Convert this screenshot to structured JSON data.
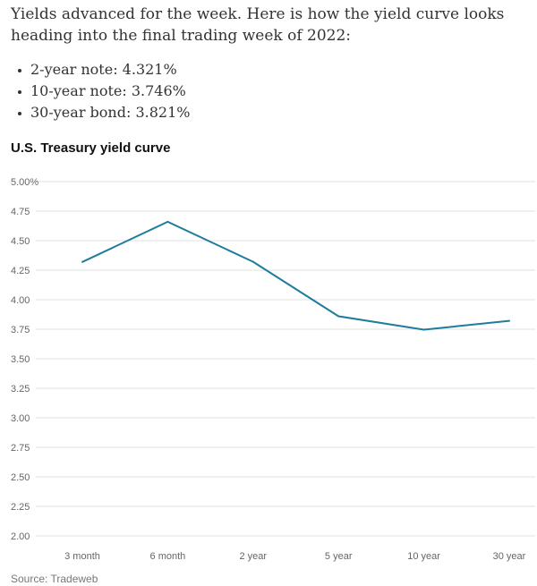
{
  "article": {
    "intro": "Yields advanced for the week. Here is how the yield curve looks heading into the final trading week of 2022:",
    "bullets": [
      "2-year note: 4.321%",
      "10-year note: 3.746%",
      "30-year bond: 3.821%"
    ]
  },
  "source": "Source: Tradeweb",
  "colors": {
    "line": "#1f7c9c",
    "grid": "#e2e2e2"
  },
  "chart_data": {
    "type": "line",
    "title": "U.S. Treasury yield curve",
    "xlabel": "",
    "ylabel": "",
    "categories": [
      "3 month",
      "6 month",
      "2 year",
      "5 year",
      "10 year",
      "30 year"
    ],
    "series": [
      {
        "values": [
          4.32,
          4.66,
          4.321,
          3.86,
          3.746,
          3.821
        ]
      }
    ],
    "ylim": [
      2.0,
      5.0
    ],
    "yticks": [
      2.0,
      2.25,
      2.5,
      2.75,
      3.0,
      3.25,
      3.5,
      3.75,
      4.0,
      4.25,
      4.5,
      4.75,
      5.0
    ],
    "ytick_labels": [
      "2.00",
      "2.25",
      "2.50",
      "2.75",
      "3.00",
      "3.25",
      "3.50",
      "3.75",
      "4.00",
      "4.25",
      "4.50",
      "4.75",
      "5.00%"
    ],
    "grid": true,
    "legend": "none"
  }
}
